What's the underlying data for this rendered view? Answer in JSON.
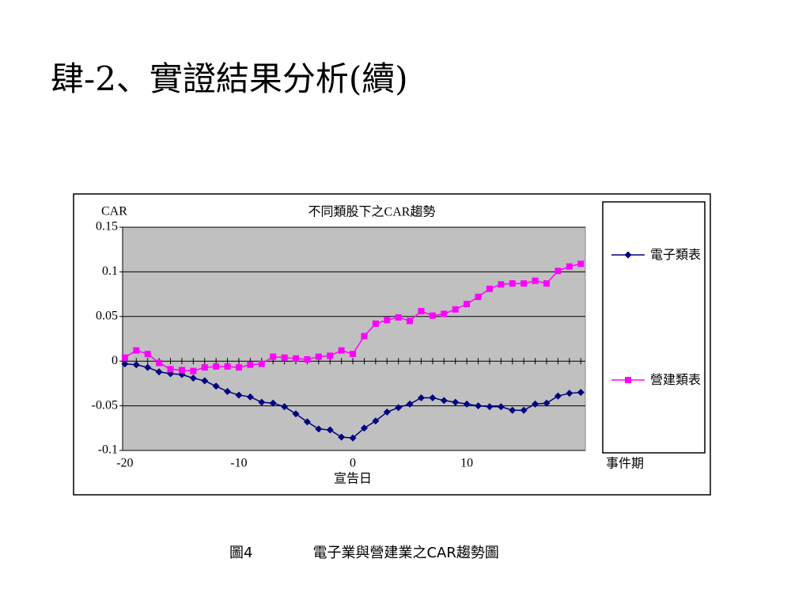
{
  "slide_title": "肆-2、實證結果分析(續)",
  "caption": {
    "number": "圖4",
    "text": "電子業與營建業之CAR趨勢圖"
  },
  "chart_data": {
    "type": "line",
    "title": "不同類股下之CAR趨勢",
    "y_label": "CAR",
    "x_label": "事件期",
    "annotation": "宣告日",
    "x": [
      -20,
      -19,
      -18,
      -17,
      -16,
      -15,
      -14,
      -13,
      -12,
      -11,
      -10,
      -9,
      -8,
      -7,
      -6,
      -5,
      -4,
      -3,
      -2,
      -1,
      0,
      1,
      2,
      3,
      4,
      5,
      6,
      7,
      8,
      9,
      10,
      11,
      12,
      13,
      14,
      15,
      16,
      17,
      18,
      19,
      20
    ],
    "series": [
      {
        "name": "電子類表",
        "color": "#000080",
        "marker": "diamond",
        "values": [
          -0.003,
          -0.004,
          -0.007,
          -0.012,
          -0.014,
          -0.015,
          -0.019,
          -0.022,
          -0.028,
          -0.034,
          -0.038,
          -0.04,
          -0.046,
          -0.047,
          -0.051,
          -0.059,
          -0.068,
          -0.076,
          -0.077,
          -0.085,
          -0.086,
          -0.075,
          -0.067,
          -0.057,
          -0.052,
          -0.048,
          -0.041,
          -0.041,
          -0.044,
          -0.046,
          -0.048,
          -0.05,
          -0.051,
          -0.051,
          -0.055,
          -0.055,
          -0.048,
          -0.047,
          -0.039,
          -0.036,
          -0.035
        ]
      },
      {
        "name": "營建類表",
        "color": "#ff00ff",
        "marker": "square",
        "values": [
          0.004,
          0.012,
          0.008,
          -0.002,
          -0.009,
          -0.01,
          -0.011,
          -0.007,
          -0.006,
          -0.006,
          -0.007,
          -0.004,
          -0.003,
          0.005,
          0.004,
          0.003,
          0.002,
          0.005,
          0.006,
          0.012,
          0.008,
          0.028,
          0.042,
          0.046,
          0.049,
          0.045,
          0.056,
          0.051,
          0.053,
          0.058,
          0.064,
          0.072,
          0.081,
          0.086,
          0.087,
          0.087,
          0.09,
          0.087,
          0.101,
          0.106,
          0.109
        ]
      }
    ],
    "xlim": [
      -20.2,
      20.4
    ],
    "xticks": [
      -20,
      -10,
      0,
      10
    ],
    "ylim": [
      -0.1,
      0.15
    ],
    "yticks": [
      -0.1,
      -0.05,
      0,
      0.05,
      0.1,
      0.15
    ],
    "grid": true,
    "plot_background": "#c0c0c0",
    "legend": "right"
  }
}
